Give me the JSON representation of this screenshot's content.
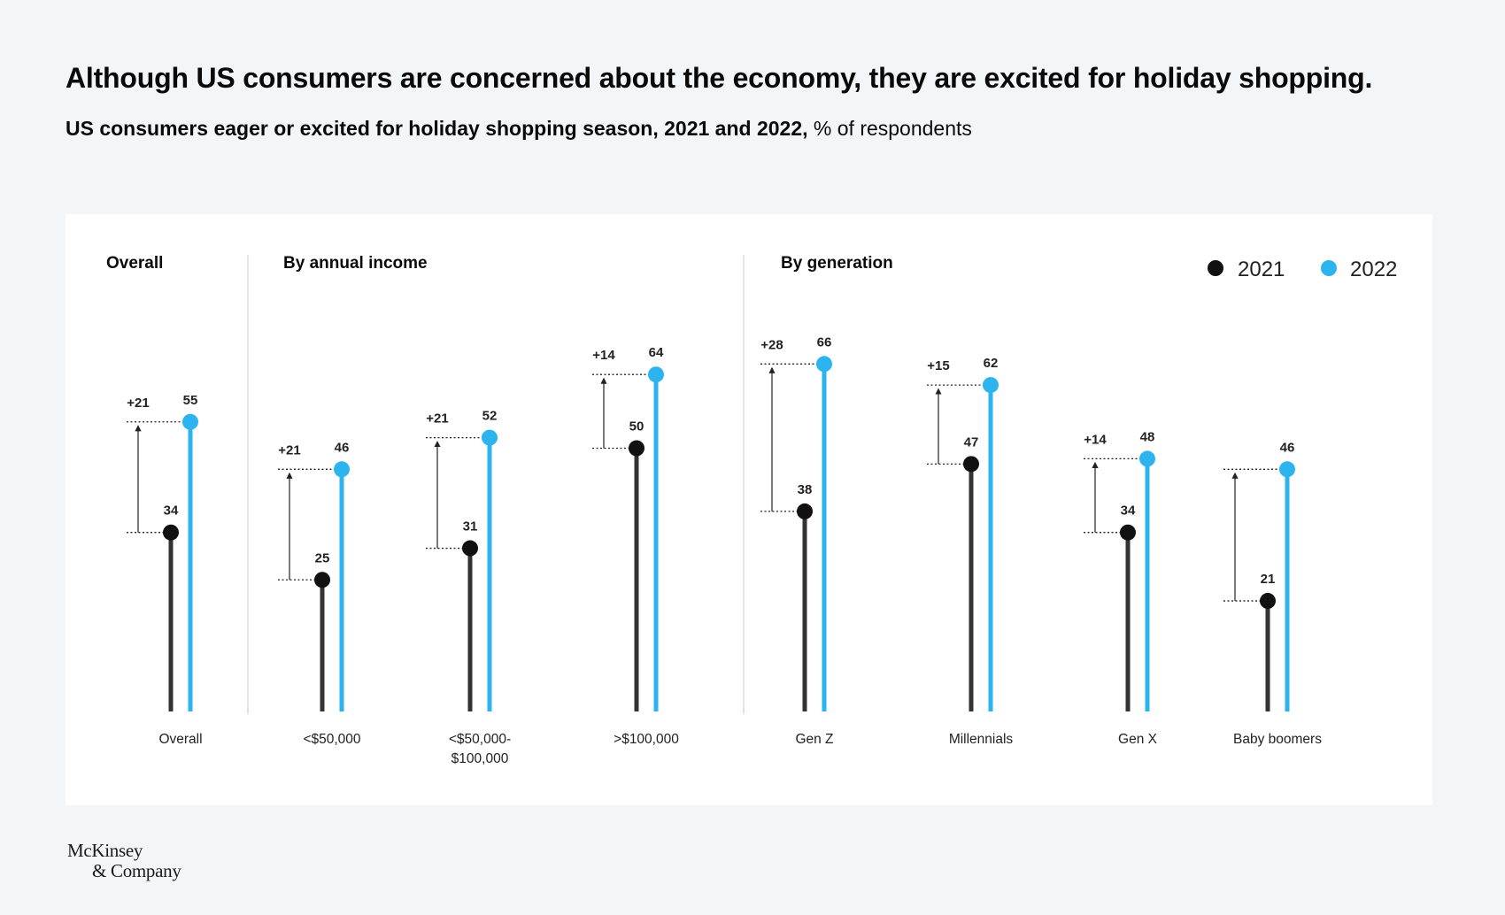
{
  "headline": "Although US consumers are concerned about the economy, they are excited for holiday shopping.",
  "subtitle": {
    "bold": "US consumers eager or excited for holiday shopping season, 2021 and 2022,",
    "unit": "% of respondents"
  },
  "logo": {
    "line1": "McKinsey",
    "line2": "& Company"
  },
  "colors": {
    "y2021": "#111111",
    "y2022": "#2db3ee",
    "stem2021": "#333333"
  },
  "chart_data": {
    "type": "dumbbell",
    "legend": {
      "position": "top-right",
      "entries": [
        "2021",
        "2022"
      ]
    },
    "ylim": [
      0,
      75
    ],
    "sections": [
      {
        "title": "Overall",
        "categories": [
          {
            "label": "Overall",
            "v2021": 34,
            "v2022": 55,
            "change": "+21"
          }
        ]
      },
      {
        "title": "By annual income",
        "categories": [
          {
            "label": "<$50,000",
            "v2021": 25,
            "v2022": 46,
            "change": "+21"
          },
          {
            "label": "<$50,000-",
            "label2": "$100,000",
            "v2021": 31,
            "v2022": 52,
            "change": "+21"
          },
          {
            "label": ">$100,000",
            "v2021": 50,
            "v2022": 64,
            "change": "+14"
          }
        ]
      },
      {
        "title": "By generation",
        "categories": [
          {
            "label": "Gen Z",
            "v2021": 38,
            "v2022": 66,
            "change": "+28"
          },
          {
            "label": "Millennials",
            "v2021": 47,
            "v2022": 62,
            "change": "+15"
          },
          {
            "label": "Gen X",
            "v2021": 34,
            "v2022": 48,
            "change": "+14"
          },
          {
            "label": "Baby boomers",
            "v2021": 21,
            "v2022": 46,
            "change": ""
          }
        ]
      }
    ]
  }
}
